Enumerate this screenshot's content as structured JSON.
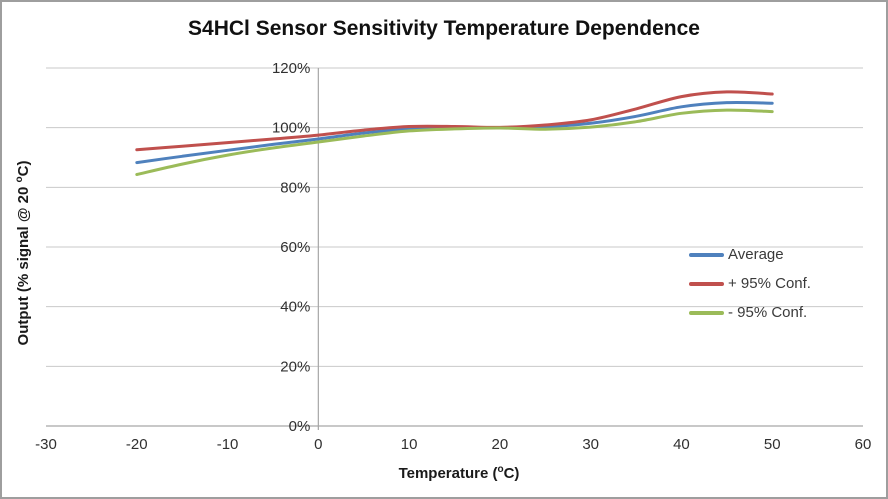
{
  "chart_data": {
    "type": "line",
    "title": "S4HCl Sensor Sensitivity Temperature Dependence",
    "xlabel": {
      "pre": "Temperature (",
      "sup": "o",
      "post": "C)"
    },
    "ylabel": {
      "pre": "Output (% signal @ 20 ",
      "sup": "o",
      "post": "C)"
    },
    "xlim": [
      -30,
      60
    ],
    "ylim": [
      0,
      120
    ],
    "grid": true,
    "legend_position": "middle-right",
    "x_ticks": [
      {
        "v": -30,
        "label": "-30"
      },
      {
        "v": -20,
        "label": "-20"
      },
      {
        "v": -10,
        "label": "-10"
      },
      {
        "v": 0,
        "label": "0"
      },
      {
        "v": 10,
        "label": "10"
      },
      {
        "v": 20,
        "label": "20"
      },
      {
        "v": 30,
        "label": "30"
      },
      {
        "v": 40,
        "label": "40"
      },
      {
        "v": 50,
        "label": "50"
      },
      {
        "v": 60,
        "label": "60"
      }
    ],
    "y_ticks": [
      {
        "v": 0,
        "label": "0%"
      },
      {
        "v": 20,
        "label": "20%"
      },
      {
        "v": 40,
        "label": "40%"
      },
      {
        "v": 60,
        "label": "60%"
      },
      {
        "v": 80,
        "label": "80%"
      },
      {
        "v": 100,
        "label": "100%"
      },
      {
        "v": 120,
        "label": "120%"
      }
    ],
    "x": [
      -20,
      -15,
      -10,
      -5,
      0,
      5,
      10,
      15,
      20,
      25,
      30,
      35,
      40,
      45,
      50
    ],
    "series": [
      {
        "name": "Average",
        "color": "#4F81BD",
        "values": [
          88.3,
          90.4,
          92.4,
          94.4,
          96.2,
          98.2,
          99.6,
          100.0,
          100.0,
          100.3,
          101.5,
          103.8,
          107.0,
          108.4,
          108.2
        ]
      },
      {
        "name": "+ 95% Conf.",
        "color": "#C0504D",
        "values": [
          92.6,
          93.8,
          95.0,
          96.2,
          97.5,
          99.2,
          100.4,
          100.4,
          100.1,
          100.9,
          102.6,
          106.3,
          110.4,
          112.0,
          111.3
        ]
      },
      {
        "name": "- 95% Conf.",
        "color": "#9BBB59",
        "values": [
          84.3,
          87.8,
          90.8,
          93.2,
          95.2,
          97.2,
          98.9,
          99.6,
          99.9,
          99.5,
          100.2,
          102.0,
          104.8,
          105.9,
          105.4
        ]
      }
    ]
  },
  "colors": {
    "grid": "#C9C9C9",
    "axis": "#A6A6A6",
    "tick_text": "#303030",
    "frame_border": "#9E9E9E"
  }
}
